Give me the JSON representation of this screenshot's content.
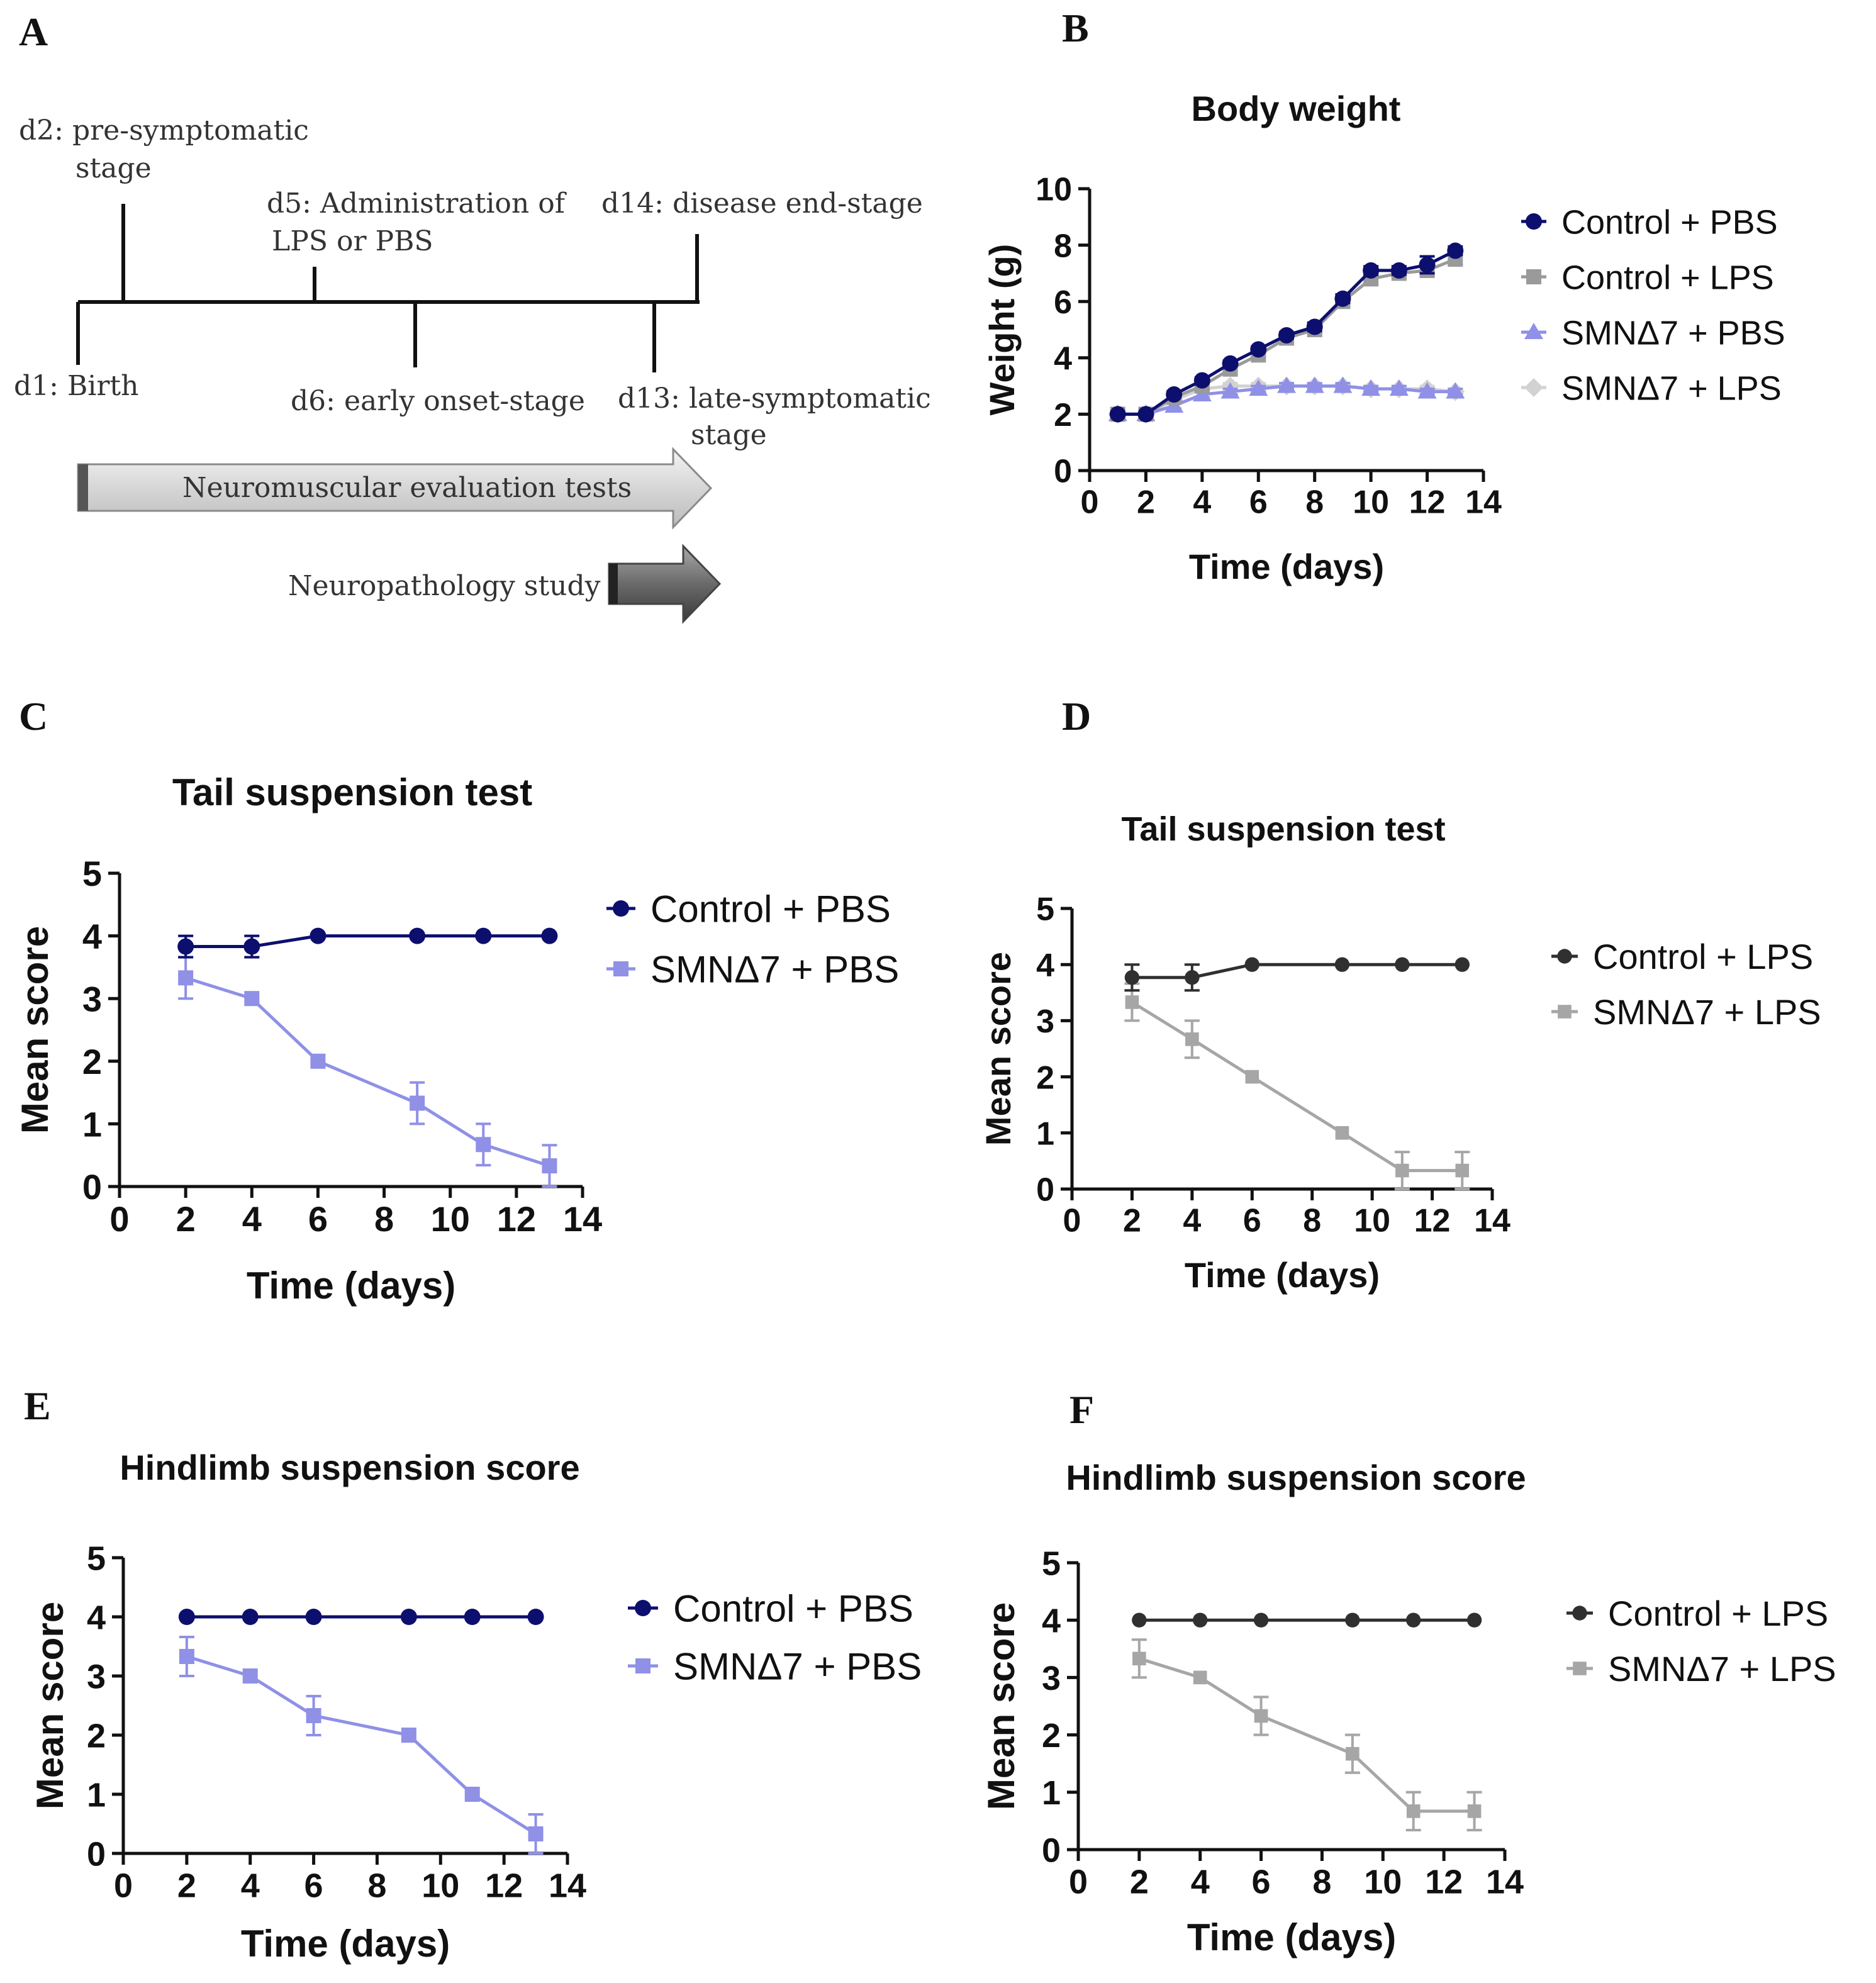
{
  "panel_letters": {
    "a": "A",
    "b": "B",
    "c": "C",
    "d": "D",
    "e": "E",
    "f": "F"
  },
  "timeline": {
    "d2_line1": "d2: pre-symptomatic",
    "d2_line2": "stage",
    "d5_line1": "d5: Administration of",
    "d5_line2": "LPS or PBS",
    "d14": "d14: disease end-stage",
    "d1": "d1: Birth",
    "d6": "d6: early onset-stage",
    "d13_line1": "d13: late-symptomatic",
    "d13_line2": "stage",
    "arrow1": "Neuromuscular evaluation tests",
    "arrow2": "Neuropathology study"
  },
  "colors": {
    "control_pbs": "#0d0f6e",
    "control_lps_b": "#9a9a9a",
    "smn_pbs": "#8f90e6",
    "smn_lps_b": "#d2d2d2",
    "control_lps": "#303030",
    "smn_lps": "#a6a6a6"
  },
  "chart_data": [
    {
      "id": "B",
      "type": "line",
      "title": "Body weight",
      "xlabel": "Time (days)",
      "ylabel": "Weight (g)",
      "xlim": [
        0,
        14
      ],
      "ylim": [
        0,
        10
      ],
      "xticks": [
        "0",
        "2",
        "4",
        "6",
        "8",
        "10",
        "12",
        "14"
      ],
      "yticks": [
        "0",
        "2",
        "4",
        "6",
        "8",
        "10"
      ],
      "series": [
        {
          "name": "Control + PBS",
          "marker": "circle",
          "x": [
            1,
            2,
            3,
            4,
            5,
            6,
            7,
            8,
            9,
            10,
            11,
            12,
            13
          ],
          "values": [
            2.0,
            2.0,
            2.7,
            3.2,
            3.8,
            4.3,
            4.8,
            5.1,
            6.1,
            7.1,
            7.1,
            7.3,
            7.8
          ],
          "errors": [
            0,
            0,
            0.1,
            0.1,
            0.1,
            0.1,
            0.1,
            0.15,
            0.15,
            0.15,
            0.15,
            0.3,
            0.15
          ]
        },
        {
          "name": "Control + LPS",
          "marker": "square",
          "x": [
            1,
            2,
            3,
            4,
            5,
            6,
            7,
            8,
            9,
            10,
            11,
            12,
            13
          ],
          "values": [
            2.0,
            2.0,
            2.6,
            3.0,
            3.6,
            4.1,
            4.7,
            5.0,
            6.0,
            6.8,
            7.0,
            7.1,
            7.5
          ],
          "errors": [
            0,
            0,
            0.1,
            0.1,
            0.1,
            0.1,
            0.1,
            0.1,
            0.15,
            0.15,
            0.15,
            0.2,
            0.2
          ]
        },
        {
          "name": "SMNΔ7 + PBS",
          "marker": "triangle",
          "x": [
            1,
            2,
            3,
            4,
            5,
            6,
            7,
            8,
            9,
            10,
            11,
            12,
            13
          ],
          "values": [
            2.0,
            2.0,
            2.3,
            2.7,
            2.8,
            2.9,
            3.0,
            3.0,
            3.0,
            2.9,
            2.9,
            2.8,
            2.8
          ],
          "errors": [
            0,
            0,
            0.1,
            0.1,
            0.1,
            0.1,
            0.1,
            0.1,
            0.1,
            0.1,
            0.1,
            0.1,
            0.1
          ]
        },
        {
          "name": "SMNΔ7 + LPS",
          "marker": "diamond",
          "x": [
            1,
            2,
            3,
            4,
            5,
            6,
            7,
            8,
            9,
            10,
            11,
            12,
            13
          ],
          "values": [
            2.0,
            2.0,
            2.5,
            2.9,
            3.0,
            3.0,
            3.0,
            3.0,
            3.0,
            2.9,
            2.9,
            2.9,
            2.8
          ],
          "errors": [
            0,
            0,
            0.1,
            0.1,
            0.1,
            0.1,
            0.1,
            0.1,
            0.1,
            0.1,
            0.1,
            0.1,
            0.1
          ]
        }
      ]
    },
    {
      "id": "C",
      "type": "line",
      "title": "Tail suspension test",
      "xlabel": "Time (days)",
      "ylabel": "Mean score",
      "xlim": [
        0,
        14
      ],
      "ylim": [
        0,
        5
      ],
      "xticks": [
        "0",
        "2",
        "4",
        "6",
        "8",
        "10",
        "12",
        "14"
      ],
      "yticks": [
        "0",
        "1",
        "2",
        "3",
        "4",
        "5"
      ],
      "series": [
        {
          "name": "Control + PBS",
          "marker": "circle",
          "x": [
            2,
            4,
            6,
            9,
            11,
            13
          ],
          "values": [
            3.83,
            3.83,
            4.0,
            4.0,
            4.0,
            4.0
          ],
          "errors": [
            0.17,
            0.17,
            0,
            0,
            0,
            0
          ]
        },
        {
          "name": "SMNΔ7 + PBS",
          "marker": "square",
          "x": [
            2,
            4,
            6,
            9,
            11,
            13
          ],
          "values": [
            3.33,
            3.0,
            2.0,
            1.33,
            0.67,
            0.33
          ],
          "errors": [
            0.33,
            0,
            0,
            0.33,
            0.33,
            0.33
          ]
        }
      ]
    },
    {
      "id": "D",
      "type": "line",
      "title": "Tail suspension test",
      "xlabel": "Time (days)",
      "ylabel": "Mean score",
      "xlim": [
        0,
        14
      ],
      "ylim": [
        0,
        5
      ],
      "xticks": [
        "0",
        "2",
        "4",
        "6",
        "8",
        "10",
        "12",
        "14"
      ],
      "yticks": [
        "0",
        "1",
        "2",
        "3",
        "4",
        "5"
      ],
      "series": [
        {
          "name": "Control + LPS",
          "marker": "circle",
          "x": [
            2,
            4,
            6,
            9,
            11,
            13
          ],
          "values": [
            3.77,
            3.77,
            4.0,
            4.0,
            4.0,
            4.0
          ],
          "errors": [
            0.23,
            0.23,
            0,
            0,
            0,
            0
          ]
        },
        {
          "name": "SMNΔ7 + LPS",
          "marker": "square",
          "x": [
            2,
            4,
            6,
            9,
            11,
            13
          ],
          "values": [
            3.33,
            2.67,
            2.0,
            1.0,
            0.33,
            0.33
          ],
          "errors": [
            0.33,
            0.33,
            0,
            0,
            0.33,
            0.33
          ]
        }
      ]
    },
    {
      "id": "E",
      "type": "line",
      "title": "Hindlimb suspension score",
      "xlabel": "Time (days)",
      "ylabel": "Mean score",
      "xlim": [
        0,
        14
      ],
      "ylim": [
        0,
        5
      ],
      "xticks": [
        "0",
        "2",
        "4",
        "6",
        "8",
        "10",
        "12",
        "14"
      ],
      "yticks": [
        "0",
        "1",
        "2",
        "3",
        "4",
        "5"
      ],
      "series": [
        {
          "name": "Control + PBS",
          "marker": "circle",
          "x": [
            2,
            4,
            6,
            9,
            11,
            13
          ],
          "values": [
            4.0,
            4.0,
            4.0,
            4.0,
            4.0,
            4.0
          ],
          "errors": [
            0,
            0,
            0,
            0,
            0,
            0
          ]
        },
        {
          "name": "SMNΔ7 + PBS",
          "marker": "square",
          "x": [
            2,
            4,
            6,
            9,
            11,
            13
          ],
          "values": [
            3.33,
            3.0,
            2.33,
            2.0,
            1.0,
            0.33
          ],
          "errors": [
            0.33,
            0,
            0.33,
            0,
            0,
            0.33
          ]
        }
      ]
    },
    {
      "id": "F",
      "type": "line",
      "title": "Hindlimb suspension score",
      "xlabel": "Time (days)",
      "ylabel": "Mean score",
      "xlim": [
        0,
        14
      ],
      "ylim": [
        0,
        5
      ],
      "xticks": [
        "0",
        "2",
        "4",
        "6",
        "8",
        "10",
        "12",
        "14"
      ],
      "yticks": [
        "0",
        "1",
        "2",
        "3",
        "4",
        "5"
      ],
      "series": [
        {
          "name": "Control + LPS",
          "marker": "circle",
          "x": [
            2,
            4,
            6,
            9,
            11,
            13
          ],
          "values": [
            4.0,
            4.0,
            4.0,
            4.0,
            4.0,
            4.0
          ],
          "errors": [
            0,
            0,
            0,
            0,
            0,
            0
          ]
        },
        {
          "name": "SMNΔ7 + LPS",
          "marker": "square",
          "x": [
            2,
            4,
            6,
            9,
            11,
            13
          ],
          "values": [
            3.33,
            3.0,
            2.33,
            1.67,
            0.67,
            0.67
          ],
          "errors": [
            0.33,
            0,
            0.33,
            0.33,
            0.33,
            0.33
          ]
        }
      ]
    }
  ]
}
